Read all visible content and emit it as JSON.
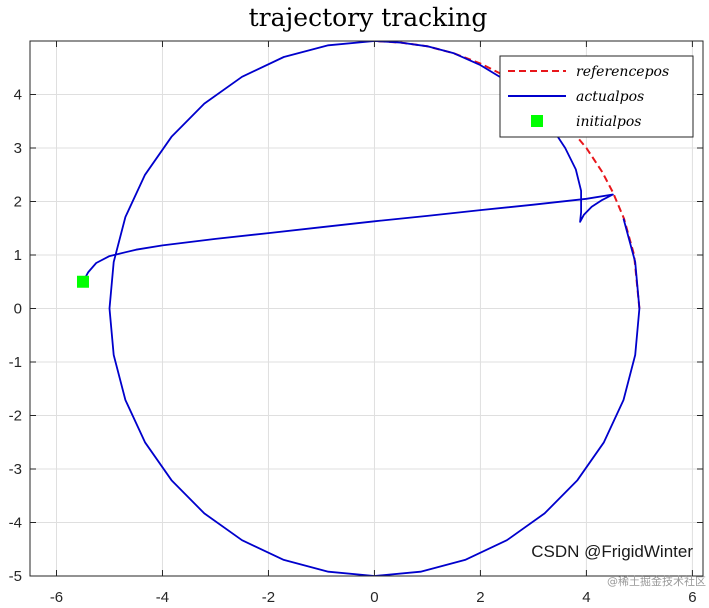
{
  "chart_data": {
    "type": "line",
    "title": "trajectory tracking",
    "xlabel": "",
    "ylabel": "",
    "xlim": [
      -6.5,
      6.2
    ],
    "ylim": [
      -5,
      5
    ],
    "xticks": [
      -6,
      -4,
      -2,
      0,
      2,
      4,
      6
    ],
    "yticks": [
      -5,
      -4,
      -3,
      -2,
      -1,
      0,
      1,
      2,
      3,
      4
    ],
    "xtick_labels": [
      "-6",
      "-4",
      "-2",
      "0",
      "2",
      "4",
      "6"
    ],
    "ytick_labels": [
      "-5",
      "-4",
      "-3",
      "-2",
      "-1",
      "0",
      "1",
      "2",
      "3",
      "4"
    ],
    "grid": true,
    "legend_position": "top-right",
    "series": [
      {
        "name": "referencepos",
        "style": "dashed",
        "color": "#e8161b",
        "points": [
          [
            5.0,
            0.0
          ],
          [
            4.9,
            1.0
          ],
          [
            4.71,
            1.68
          ],
          [
            4.5,
            2.17
          ],
          [
            4.3,
            2.55
          ],
          [
            4.0,
            3.0
          ],
          [
            3.54,
            3.54
          ],
          [
            3.0,
            4.0
          ],
          [
            2.5,
            4.33
          ],
          [
            2.0,
            4.58
          ],
          [
            1.5,
            4.77
          ],
          [
            1.0,
            4.9
          ],
          [
            0.5,
            4.97
          ],
          [
            0.0,
            5.0
          ]
        ]
      },
      {
        "name": "actualpos",
        "style": "solid",
        "color": "#0000cc",
        "points": [
          [
            -5.5,
            0.5
          ],
          [
            -5.4,
            0.68
          ],
          [
            -5.25,
            0.85
          ],
          [
            -5.0,
            0.98
          ],
          [
            -4.5,
            1.1
          ],
          [
            -4.0,
            1.18
          ],
          [
            -3.0,
            1.3
          ],
          [
            -2.0,
            1.41
          ],
          [
            -1.0,
            1.52
          ],
          [
            0.0,
            1.63
          ],
          [
            1.0,
            1.73
          ],
          [
            2.0,
            1.84
          ],
          [
            3.0,
            1.94
          ],
          [
            4.0,
            2.05
          ],
          [
            4.5,
            2.13
          ],
          [
            4.3,
            2.03
          ],
          [
            4.1,
            1.9
          ],
          [
            3.95,
            1.75
          ],
          [
            3.88,
            1.62
          ],
          [
            3.9,
            1.8
          ],
          [
            3.9,
            2.2
          ],
          [
            3.8,
            2.6
          ],
          [
            3.6,
            3.0
          ],
          [
            3.3,
            3.45
          ],
          [
            3.0,
            3.78
          ],
          [
            2.5,
            4.25
          ],
          [
            2.0,
            4.55
          ],
          [
            1.5,
            4.77
          ],
          [
            1.0,
            4.9
          ],
          [
            0.5,
            4.97
          ],
          [
            0.0,
            5.0
          ],
          [
            -0.87,
            4.92
          ],
          [
            -1.71,
            4.7
          ],
          [
            -2.5,
            4.33
          ],
          [
            -3.21,
            3.83
          ],
          [
            -3.83,
            3.21
          ],
          [
            -4.33,
            2.5
          ],
          [
            -4.7,
            1.71
          ],
          [
            -4.92,
            0.87
          ],
          [
            -5.0,
            0.0
          ],
          [
            -4.92,
            -0.87
          ],
          [
            -4.7,
            -1.71
          ],
          [
            -4.33,
            -2.5
          ],
          [
            -3.83,
            -3.21
          ],
          [
            -3.21,
            -3.83
          ],
          [
            -2.5,
            -4.33
          ],
          [
            -1.71,
            -4.7
          ],
          [
            -0.87,
            -4.92
          ],
          [
            0.0,
            -5.0
          ],
          [
            0.87,
            -4.92
          ],
          [
            1.71,
            -4.7
          ],
          [
            2.5,
            -4.33
          ],
          [
            3.21,
            -3.83
          ],
          [
            3.83,
            -3.21
          ],
          [
            4.33,
            -2.5
          ],
          [
            4.7,
            -1.71
          ],
          [
            4.92,
            -0.87
          ],
          [
            5.0,
            0.0
          ],
          [
            4.92,
            0.87
          ],
          [
            4.7,
            1.68
          ]
        ]
      },
      {
        "name": "initialpos",
        "style": "marker",
        "marker": "square",
        "color": "#00ff00",
        "points": [
          [
            -5.5,
            0.5
          ]
        ]
      }
    ]
  },
  "watermark": {
    "main": "CSDN @FrigidWinter",
    "sub": "@稀土掘金技术社区"
  }
}
